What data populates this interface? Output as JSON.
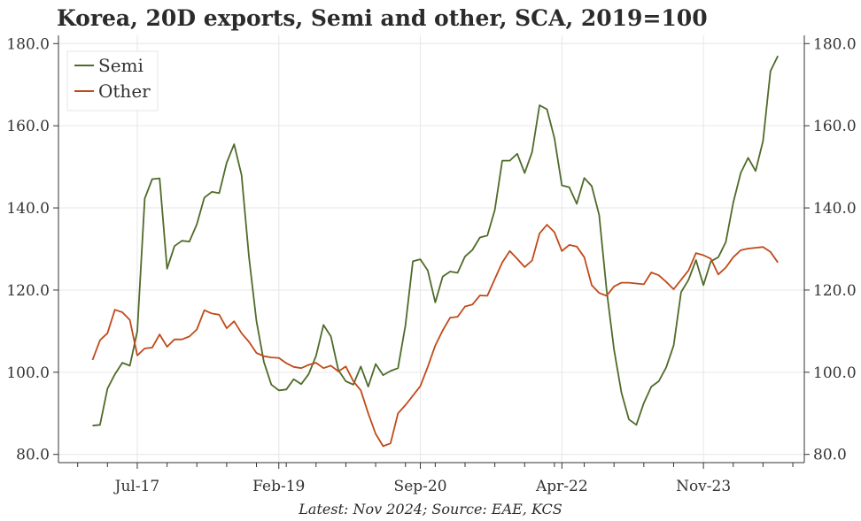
{
  "chart_data": {
    "type": "line",
    "title": "Korea, 20D exports, Semi and other, SCA, 2019=100",
    "footer": "Latest: Nov 2024; Source: EAE, KCS",
    "ylim": [
      78,
      182
    ],
    "y_ticks": [
      "80.0",
      "100.0",
      "120.0",
      "140.0",
      "160.0",
      "180.0"
    ],
    "x_ticks": [
      "Jul-17",
      "Feb-19",
      "Sep-20",
      "Apr-22",
      "Nov-23"
    ],
    "x_start": "2017-01",
    "x_end": "2024-11",
    "grid": true,
    "legend_position": "top-left",
    "series": [
      {
        "name": "Semi",
        "color": "#4f6b2a",
        "values": [
          87,
          87.2,
          96,
          99.5,
          102.3,
          101.6,
          110,
          142.3,
          147,
          147.2,
          125.2,
          130.7,
          132,
          131.8,
          136,
          142.5,
          143.9,
          143.6,
          151,
          155.5,
          148,
          128,
          112.5,
          102.5,
          97,
          95.6,
          95.8,
          98.3,
          97.1,
          99.5,
          104,
          111.5,
          108.7,
          100.5,
          97.8,
          97,
          101.4,
          96.5,
          102,
          99.3,
          100.3,
          101,
          111.4,
          127,
          127.5,
          124.8,
          117,
          123.3,
          124.5,
          124.2,
          128.2,
          129.8,
          132.8,
          133.3,
          139.5,
          151.5,
          151.5,
          153.2,
          148.5,
          153.6,
          165,
          164,
          157,
          145.5,
          145,
          141,
          147.3,
          145.3,
          138.3,
          120,
          105.5,
          95,
          88.5,
          87.2,
          92.5,
          96.5,
          97.8,
          101.2,
          106.5,
          119.5,
          122.5,
          127.3,
          121.2,
          127,
          128,
          131.7,
          141.3,
          148.5,
          152.2,
          149,
          156.3,
          173.3,
          177
        ]
      },
      {
        "name": "Other",
        "color": "#c04a1a",
        "values": [
          103,
          107.8,
          109.5,
          115.2,
          114.6,
          112.7,
          104.1,
          105.8,
          106,
          109.2,
          106.2,
          108,
          108,
          108.7,
          110.4,
          115.1,
          114.3,
          114,
          110.7,
          112.4,
          109.5,
          107.4,
          104.7,
          103.9,
          103.6,
          103.5,
          102.2,
          101.3,
          101,
          101.8,
          102.3,
          101,
          101.6,
          100.2,
          101.4,
          97.8,
          95.6,
          90,
          85,
          82,
          82.7,
          90,
          92,
          94.3,
          96.6,
          101.3,
          106.5,
          110.2,
          113.3,
          113.5,
          116,
          116.5,
          118.7,
          118.6,
          122.7,
          126.7,
          129.5,
          127.6,
          125.6,
          127.2,
          133.8,
          135.9,
          134.1,
          129.5,
          131,
          130.6,
          128,
          121.2,
          119.3,
          118.6,
          120.9,
          121.8,
          121.8,
          121.6,
          121.4,
          124.3,
          123.6,
          122,
          120.2,
          122.5,
          124.8,
          129,
          128.5,
          127.6,
          123.8,
          125.5,
          128,
          129.7,
          130.1,
          130.3,
          130.5,
          129.3,
          126.7
        ]
      }
    ]
  }
}
